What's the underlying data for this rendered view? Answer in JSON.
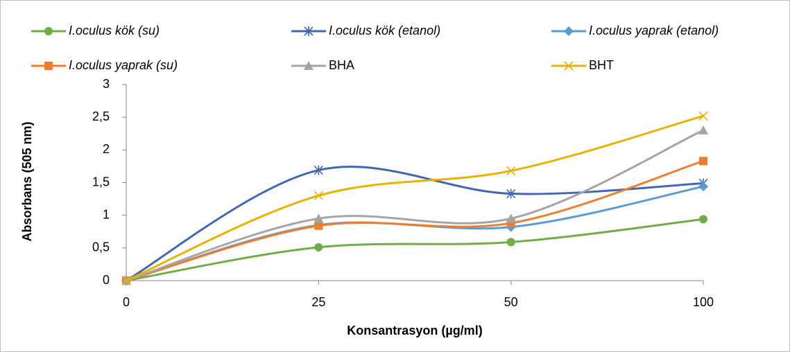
{
  "chart_data": {
    "type": "line",
    "smooth": true,
    "x_label": "Konsantrasyon (µg/ml)",
    "y_label": "Absorbans (505 nm)",
    "categories": [
      "0",
      "25",
      "50",
      "100"
    ],
    "ylim": [
      0,
      3
    ],
    "yticks": [
      0,
      {
        "value": 0.5,
        "label": "0,5"
      },
      1,
      {
        "value": 1.5,
        "label": "1,5"
      },
      2,
      {
        "value": 2.5,
        "label": "2,5"
      },
      3
    ],
    "grid": false,
    "series": [
      {
        "name": "I.oculus kök (su)",
        "color": "#70ad47",
        "marker": "circle",
        "italic": true,
        "values": [
          0,
          0.51,
          0.59,
          0.94
        ]
      },
      {
        "name": "I.oculus kök (etanol)",
        "color": "#4267b2",
        "marker": "asterisk",
        "italic": true,
        "values": [
          0,
          1.69,
          1.33,
          1.49
        ]
      },
      {
        "name": "I.oculus yaprak (etanol)",
        "color": "#5b9bd5",
        "marker": "diamond",
        "italic": true,
        "values": [
          0,
          0.85,
          0.82,
          1.44
        ]
      },
      {
        "name": "I.oculus yaprak (su)",
        "color": "#ed7d31",
        "marker": "square",
        "italic": true,
        "values": [
          0,
          0.84,
          0.88,
          1.83
        ]
      },
      {
        "name": "BHA",
        "color": "#a5a5a5",
        "marker": "triangle",
        "italic": false,
        "values": [
          0,
          0.95,
          0.95,
          2.3
        ]
      },
      {
        "name": "BHT",
        "color": "#e8b200",
        "marker": "x",
        "italic": false,
        "values": [
          0,
          1.3,
          1.68,
          2.52
        ]
      }
    ]
  }
}
